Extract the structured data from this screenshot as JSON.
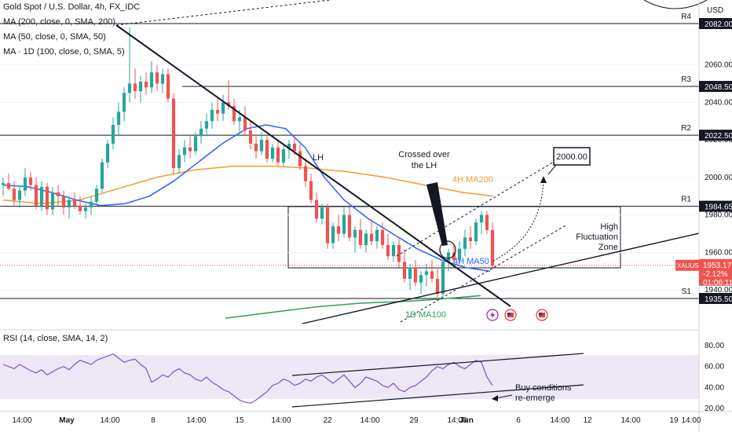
{
  "legend": {
    "symbol_line": "Gold Spot / U.S. Dollar, 4h, FX_IDC",
    "ma1": "MA (200, close, 0, SMA, 200)",
    "ma2": "MA (50, close, 0, SMA, 50)",
    "ma3": "MA · 1D (100, close, 0, SMA, 5)",
    "rsi": "RSI (14, close, SMA, 14, 2)"
  },
  "currency": "USD",
  "chart_data": {
    "type": "candlestick",
    "title": "Gold Spot / U.S. Dollar, 4h, FX_IDC",
    "price_axis": {
      "ticks": [
        2082.0,
        2060.0,
        2048.5,
        2040.0,
        2022.5,
        2020.0,
        2000.0,
        1984.65,
        1980.0,
        1960.0,
        1953.17,
        1940.0,
        1935.5
      ],
      "range": [
        1925,
        2095
      ]
    },
    "x_axis_ticks": [
      "14:00",
      "May",
      "14:00",
      "8",
      "14:00",
      "15",
      "14:00",
      "22",
      "14:00",
      "29",
      "14:00",
      "Jun",
      "6",
      "14:00",
      "12",
      "14:00",
      "19",
      "14:00"
    ],
    "levels": [
      {
        "name": "R4",
        "value": "2082.00"
      },
      {
        "name": "R3",
        "value": "2048.50"
      },
      {
        "name": "R2",
        "value": "2022.50"
      },
      {
        "name": "R1",
        "value": "1984.65"
      },
      {
        "name": "S1",
        "value": "1935.50"
      }
    ],
    "current_price": {
      "symbol": "XAUUSD",
      "price": "1953.17",
      "change": "-2.12%",
      "countdown": "01:06:11"
    },
    "candles": [
      [
        1996,
        2000,
        1990,
        1997
      ],
      [
        1997,
        2002,
        1993,
        1994
      ],
      [
        1994,
        1998,
        1985,
        1988
      ],
      [
        1988,
        1995,
        1984,
        1993
      ],
      [
        1993,
        2005,
        1990,
        2000
      ],
      [
        2000,
        2003,
        1993,
        1996
      ],
      [
        1996,
        2000,
        1983,
        1985
      ],
      [
        1985,
        1998,
        1982,
        1995
      ],
      [
        1995,
        1997,
        1980,
        1983
      ],
      [
        1983,
        1995,
        1980,
        1992
      ],
      [
        1992,
        1996,
        1985,
        1990
      ],
      [
        1990,
        1993,
        1980,
        1984
      ],
      [
        1984,
        1990,
        1978,
        1988
      ],
      [
        1988,
        1992,
        1983,
        1985
      ],
      [
        1985,
        1990,
        1980,
        1982
      ],
      [
        1982,
        1986,
        1978,
        1984
      ],
      [
        1984,
        1990,
        1980,
        1987
      ],
      [
        1987,
        1996,
        1985,
        1994
      ],
      [
        1994,
        2010,
        1992,
        2008
      ],
      [
        2008,
        2020,
        2005,
        2018
      ],
      [
        2018,
        2032,
        2015,
        2028
      ],
      [
        2028,
        2040,
        2022,
        2035
      ],
      [
        2035,
        2048,
        2030,
        2045
      ],
      [
        2045,
        2080,
        2040,
        2050
      ],
      [
        2050,
        2058,
        2042,
        2046
      ],
      [
        2046,
        2054,
        2040,
        2051
      ],
      [
        2051,
        2056,
        2044,
        2048
      ],
      [
        2048,
        2062,
        2045,
        2056
      ],
      [
        2056,
        2060,
        2046,
        2050
      ],
      [
        2050,
        2058,
        2045,
        2055
      ],
      [
        2055,
        2058,
        2040,
        2042
      ],
      [
        2042,
        2045,
        2002,
        2005
      ],
      [
        2005,
        2015,
        2002,
        2012
      ],
      [
        2012,
        2020,
        2008,
        2016
      ],
      [
        2016,
        2022,
        2010,
        2014
      ],
      [
        2014,
        2024,
        2012,
        2022
      ],
      [
        2022,
        2030,
        2018,
        2026
      ],
      [
        2026,
        2034,
        2022,
        2030
      ],
      [
        2030,
        2040,
        2026,
        2036
      ],
      [
        2036,
        2042,
        2030,
        2034
      ],
      [
        2034,
        2044,
        2030,
        2040
      ],
      [
        2040,
        2052,
        2036,
        2038
      ],
      [
        2038,
        2042,
        2028,
        2030
      ],
      [
        2030,
        2036,
        2024,
        2032
      ],
      [
        2032,
        2038,
        2022,
        2025
      ],
      [
        2025,
        2030,
        2015,
        2018
      ],
      [
        2018,
        2022,
        2010,
        2014
      ],
      [
        2014,
        2024,
        2012,
        2020
      ],
      [
        2020,
        2022,
        2008,
        2010
      ],
      [
        2010,
        2018,
        2008,
        2016
      ],
      [
        2016,
        2020,
        2006,
        2008
      ],
      [
        2008,
        2018,
        2006,
        2015
      ],
      [
        2015,
        2020,
        2010,
        2018
      ],
      [
        2018,
        2022,
        2012,
        2014
      ],
      [
        2014,
        2018,
        2004,
        2006
      ],
      [
        2006,
        2010,
        1995,
        1998
      ],
      [
        1998,
        2002,
        1986,
        1988
      ],
      [
        1988,
        1992,
        1976,
        1978
      ],
      [
        1978,
        1986,
        1975,
        1984
      ],
      [
        1984,
        1986,
        1962,
        1965
      ],
      [
        1965,
        1976,
        1962,
        1974
      ],
      [
        1974,
        1980,
        1966,
        1970
      ],
      [
        1970,
        1984,
        1968,
        1980
      ],
      [
        1980,
        1984,
        1966,
        1968
      ],
      [
        1968,
        1974,
        1960,
        1972
      ],
      [
        1972,
        1978,
        1962,
        1964
      ],
      [
        1964,
        1972,
        1960,
        1970
      ],
      [
        1970,
        1978,
        1964,
        1966
      ],
      [
        1966,
        1974,
        1962,
        1972
      ],
      [
        1972,
        1976,
        1962,
        1964
      ],
      [
        1964,
        1970,
        1956,
        1958
      ],
      [
        1958,
        1966,
        1955,
        1964
      ],
      [
        1964,
        1968,
        1952,
        1955
      ],
      [
        1955,
        1962,
        1944,
        1946
      ],
      [
        1946,
        1954,
        1940,
        1952
      ],
      [
        1952,
        1956,
        1942,
        1944
      ],
      [
        1944,
        1950,
        1938,
        1948
      ],
      [
        1948,
        1954,
        1942,
        1950
      ],
      [
        1950,
        1956,
        1944,
        1946
      ],
      [
        1946,
        1952,
        1934,
        1938
      ],
      [
        1938,
        1956,
        1936,
        1955
      ],
      [
        1955,
        1962,
        1950,
        1960
      ],
      [
        1960,
        1964,
        1952,
        1956
      ],
      [
        1956,
        1966,
        1954,
        1962
      ],
      [
        1962,
        1972,
        1958,
        1968
      ],
      [
        1968,
        1974,
        1962,
        1966
      ],
      [
        1966,
        1978,
        1964,
        1976
      ],
      [
        1976,
        1982,
        1970,
        1980
      ],
      [
        1980,
        1982,
        1970,
        1972
      ],
      [
        1972,
        1976,
        1952,
        1953
      ]
    ],
    "moving_averages": [
      {
        "name": "4H MA200",
        "color": "#f59c2a",
        "points": [
          [
            0,
            1988
          ],
          [
            20,
            1986
          ],
          [
            40,
            1988
          ],
          [
            60,
            1994
          ],
          [
            80,
            2000
          ],
          [
            100,
            2004
          ],
          [
            120,
            2006
          ],
          [
            140,
            2006
          ],
          [
            160,
            2005
          ],
          [
            180,
            2003
          ],
          [
            200,
            2000
          ],
          [
            220,
            1996
          ],
          [
            240,
            1992
          ],
          [
            256,
            1990
          ]
        ]
      },
      {
        "name": "4H MA50",
        "color": "#2962ff",
        "points": [
          [
            0,
            1996
          ],
          [
            10,
            1995
          ],
          [
            20,
            1992
          ],
          [
            30,
            1988
          ],
          [
            40,
            1985
          ],
          [
            50,
            1986
          ],
          [
            60,
            1990
          ],
          [
            70,
            1998
          ],
          [
            80,
            2008
          ],
          [
            90,
            2018
          ],
          [
            100,
            2026
          ],
          [
            108,
            2028
          ],
          [
            116,
            2026
          ],
          [
            124,
            2016
          ],
          [
            132,
            2000
          ],
          [
            140,
            1988
          ],
          [
            150,
            1978
          ],
          [
            160,
            1970
          ],
          [
            170,
            1962
          ],
          [
            180,
            1956
          ],
          [
            190,
            1952
          ],
          [
            200,
            1950
          ]
        ]
      },
      {
        "name": "1D MA100",
        "color": "#2ea055",
        "points": [
          [
            80,
            1925
          ],
          [
            110,
            1928
          ],
          [
            140,
            1931
          ],
          [
            170,
            1933
          ],
          [
            200,
            1934
          ],
          [
            220,
            1935
          ],
          [
            250,
            1937
          ]
        ]
      }
    ],
    "annotations": [
      "LH",
      "Crossed over the LH",
      "4H MA200",
      "4H MA50",
      "1D MA100",
      "2000.00",
      "High Fluctuation Zone"
    ],
    "rsi": {
      "axis_ticks": [
        80.0,
        60.0,
        40.0,
        20.0
      ],
      "values": [
        62,
        60,
        58,
        62,
        59,
        56,
        54,
        57,
        52,
        55,
        58,
        60,
        57,
        62,
        66,
        64,
        62,
        66,
        68,
        70,
        72,
        68,
        64,
        66,
        67,
        62,
        58,
        45,
        48,
        52,
        50,
        55,
        58,
        54,
        52,
        48,
        46,
        50,
        45,
        42,
        38,
        36,
        32,
        28,
        26,
        25,
        28,
        32,
        36,
        42,
        44,
        48,
        46,
        42,
        44,
        48,
        46,
        50,
        52,
        48,
        44,
        48,
        52,
        46,
        40,
        44,
        50,
        48,
        46,
        42,
        40,
        44,
        38,
        36,
        40,
        42,
        46,
        50,
        56,
        60,
        58,
        62,
        64,
        60,
        58,
        62,
        66,
        64,
        50,
        42
      ],
      "buy_note": "Buy conditions re-emerge"
    }
  }
}
